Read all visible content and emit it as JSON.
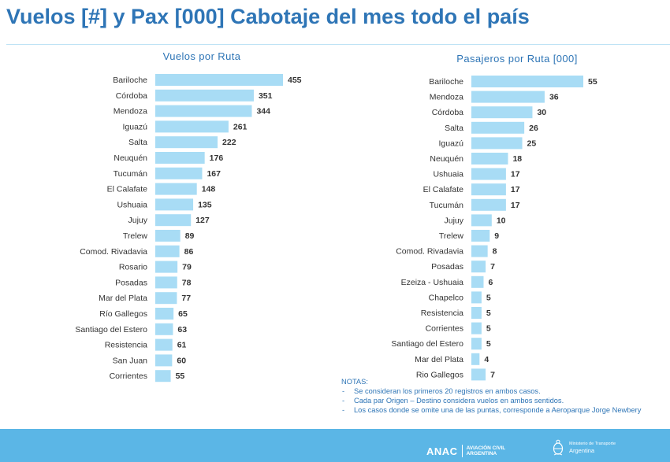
{
  "page": {
    "title": "Vuelos [#] y Pax [000] Cabotaje del mes todo el país"
  },
  "chart_data": [
    {
      "type": "bar",
      "orientation": "horizontal",
      "title": "Vuelos por Ruta",
      "bar_color": "#a8dcf5",
      "categories": [
        "Bariloche",
        "Córdoba",
        "Mendoza",
        "Iguazú",
        "Salta",
        "Neuquén",
        "Tucumán",
        "El Calafate",
        "Ushuaia",
        "Jujuy",
        "Trelew",
        "Comod. Rivadavia",
        "Rosario",
        "Posadas",
        "Mar del Plata",
        "Río Gallegos",
        "Santiago del Estero",
        "Resistencia",
        "San Juan",
        "Corrientes"
      ],
      "values": [
        455,
        351,
        344,
        261,
        222,
        176,
        167,
        148,
        135,
        127,
        89,
        86,
        79,
        78,
        77,
        65,
        63,
        61,
        60,
        55
      ]
    },
    {
      "type": "bar",
      "orientation": "horizontal",
      "title": "Pasajeros por Ruta [000]",
      "bar_color": "#a8dcf5",
      "categories": [
        "Bariloche",
        "Mendoza",
        "Córdoba",
        "Salta",
        "Iguazú",
        "Neuquén",
        "Ushuaia",
        "El Calafate",
        "Tucumán",
        "Jujuy",
        "Trelew",
        "Comod. Rivadavia",
        "Posadas",
        "Ezeiza - Ushuaia",
        "Chapelco",
        "Resistencia",
        "Corrientes",
        "Santiago del Estero",
        "Mar del Plata",
        "Rio Gallegos"
      ],
      "values": [
        55,
        36,
        30,
        26,
        25,
        18,
        17,
        17,
        17,
        10,
        9,
        8,
        7,
        6,
        5,
        5,
        5,
        5,
        4,
        7
      ]
    }
  ],
  "notes": {
    "title": "NOTAS:",
    "items": [
      "Se consideran los primeros 20 registros en ambos casos.",
      "Cada par Origen – Destino considera vuelos en ambos sentidos.",
      "Los casos donde se omite una de las puntas, corresponde a Aeroparque Jorge Newbery"
    ]
  },
  "footer": {
    "anac": "ANAC",
    "anac_sub_line1": "AVIACIÓN CIVIL",
    "anac_sub_line2": "ARGENTINA",
    "ministry_line": "Ministerio de Transporte",
    "country": "Argentina",
    "color": "#5bb6e6"
  }
}
